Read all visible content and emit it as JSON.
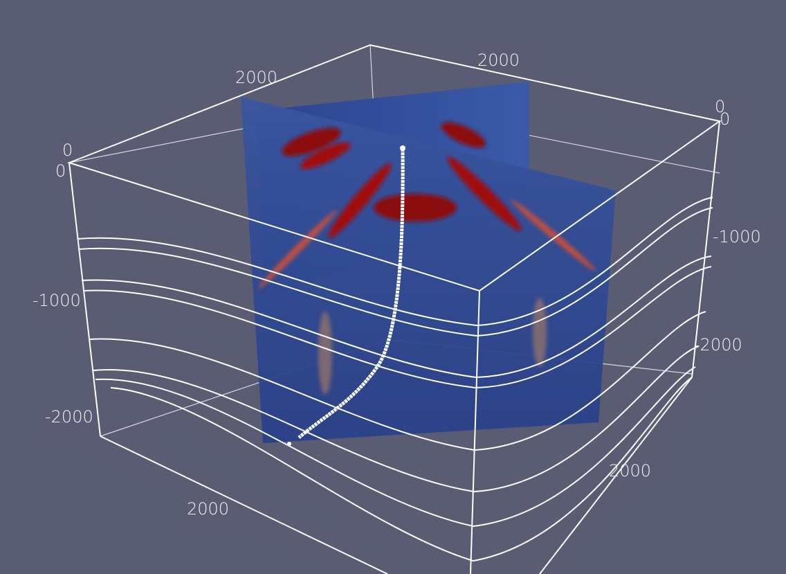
{
  "axis_labels": [
    "2000",
    "2000",
    "0",
    "0",
    "0",
    "0",
    "-1000",
    "-1000",
    "-2000",
    "-2000",
    "2000",
    "2000"
  ]
}
